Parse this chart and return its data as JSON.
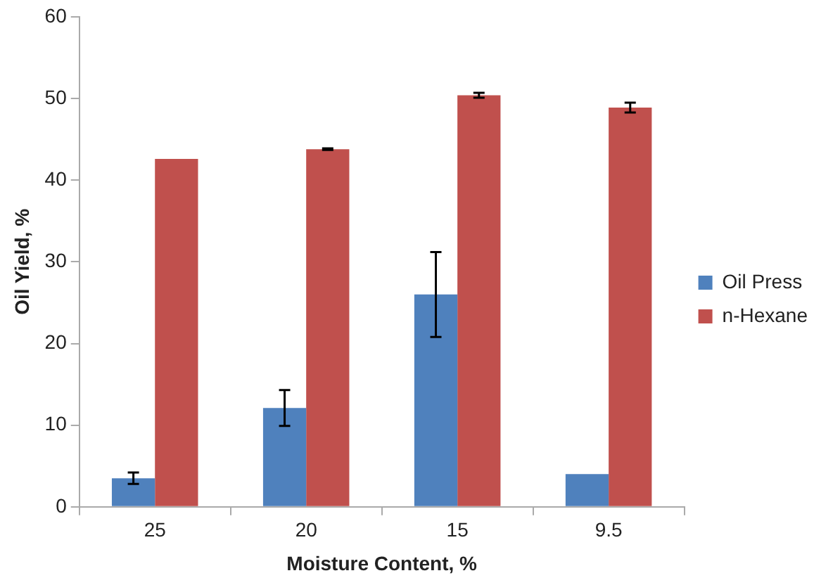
{
  "chart_data": {
    "type": "bar",
    "xlabel": "Moisture Content, %",
    "ylabel": "Oil Yield, %",
    "categories": [
      "25",
      "20",
      "15",
      "9.5"
    ],
    "series": [
      {
        "name": "Oil Press",
        "color": "#4f81bd",
        "values": [
          3.5,
          12.1,
          26,
          4.0
        ],
        "errors": [
          0.7,
          2.2,
          5.2,
          null
        ]
      },
      {
        "name": "n-Hexane",
        "color": "#c0504d",
        "values": [
          42.6,
          43.8,
          50.4,
          48.9
        ],
        "errors": [
          null,
          0.1,
          0.3,
          0.6
        ]
      }
    ],
    "ylim": [
      0,
      60
    ],
    "yticks": [
      0,
      10,
      20,
      30,
      40,
      50,
      60
    ],
    "grid": false,
    "legend": "right"
  }
}
